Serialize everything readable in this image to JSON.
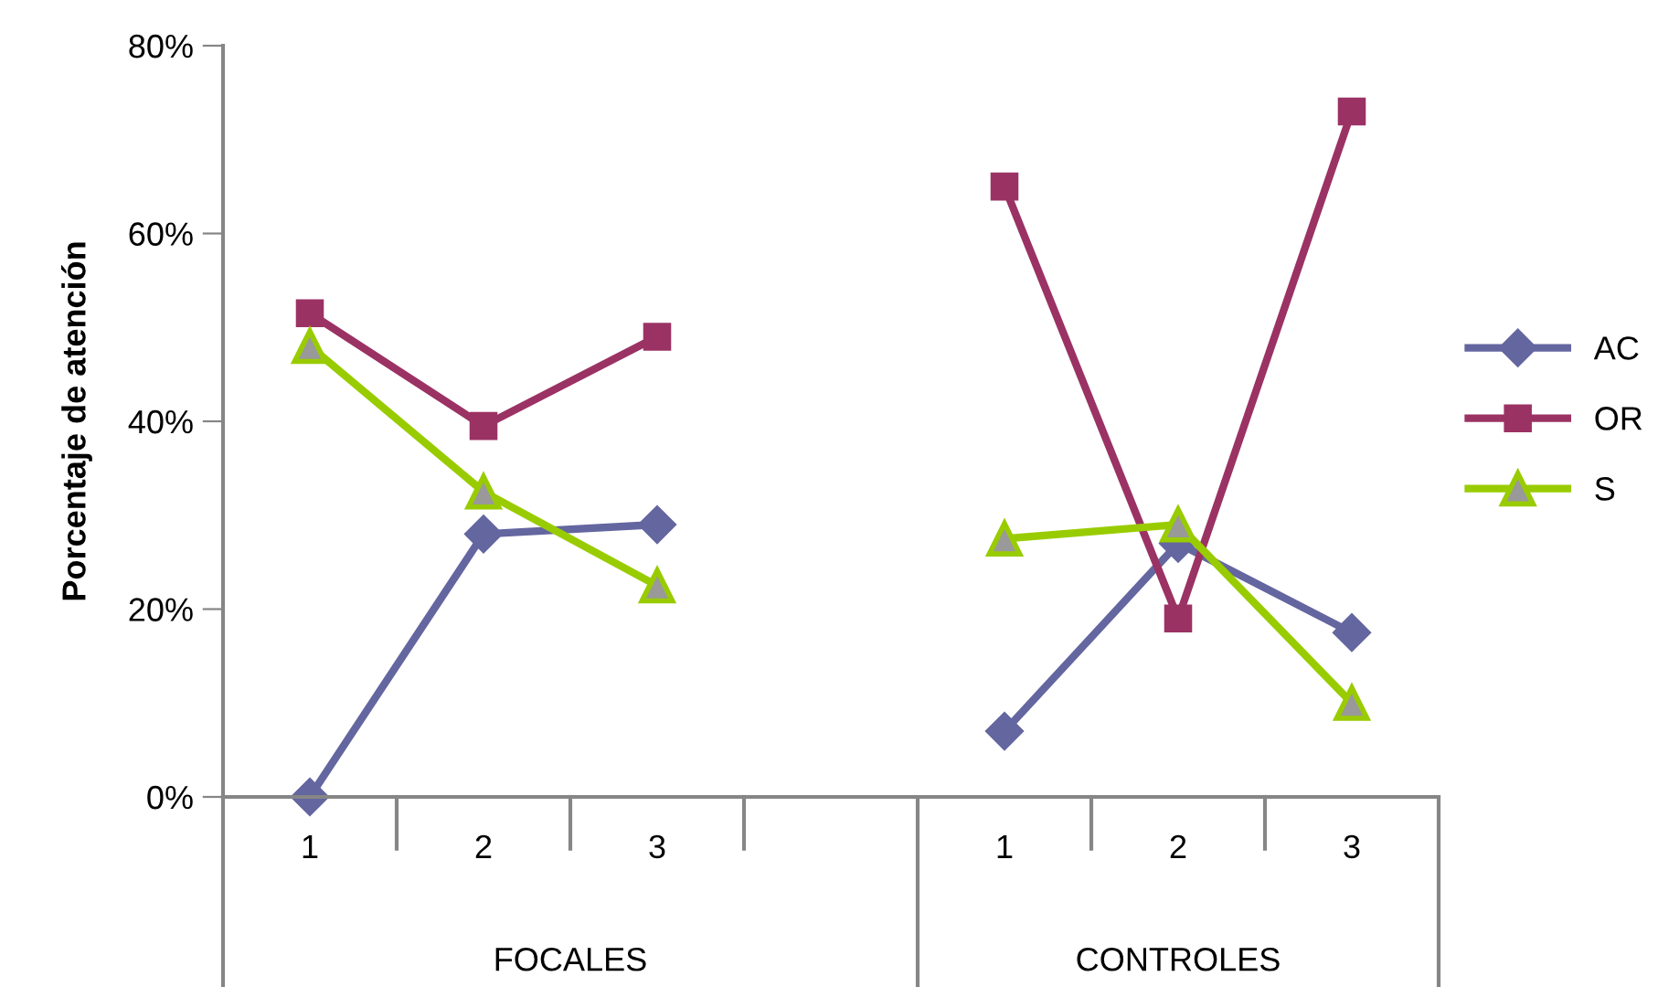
{
  "chart_data": {
    "type": "line",
    "ylabel": "Porcentaje de atención",
    "categories": [
      "1",
      "2",
      "3",
      null,
      "1",
      "2",
      "3"
    ],
    "annotations": [
      "FOCALES",
      "CONTROLES"
    ],
    "series": [
      {
        "name": "AC",
        "color": "#6466a0",
        "marker": "diamond",
        "values": [
          0,
          28,
          29,
          null,
          7,
          27,
          17.5
        ]
      },
      {
        "name": "OR",
        "color": "#9b3264",
        "marker": "square",
        "values": [
          51.5,
          39.5,
          49,
          null,
          65,
          19,
          73
        ]
      },
      {
        "name": "S",
        "color": "#99cc00",
        "marker": "triangle",
        "values": [
          48,
          32.5,
          22.5,
          null,
          27.5,
          29,
          10
        ]
      }
    ],
    "ylim": [
      0,
      80
    ],
    "yticks": [
      {
        "value": 0,
        "label": "0%"
      },
      {
        "value": 20,
        "label": "20%"
      },
      {
        "value": 40,
        "label": "40%"
      },
      {
        "value": 60,
        "label": "60%"
      },
      {
        "value": 80,
        "label": "80%"
      }
    ],
    "grid": false,
    "legend": "right",
    "line_style": "solid"
  }
}
